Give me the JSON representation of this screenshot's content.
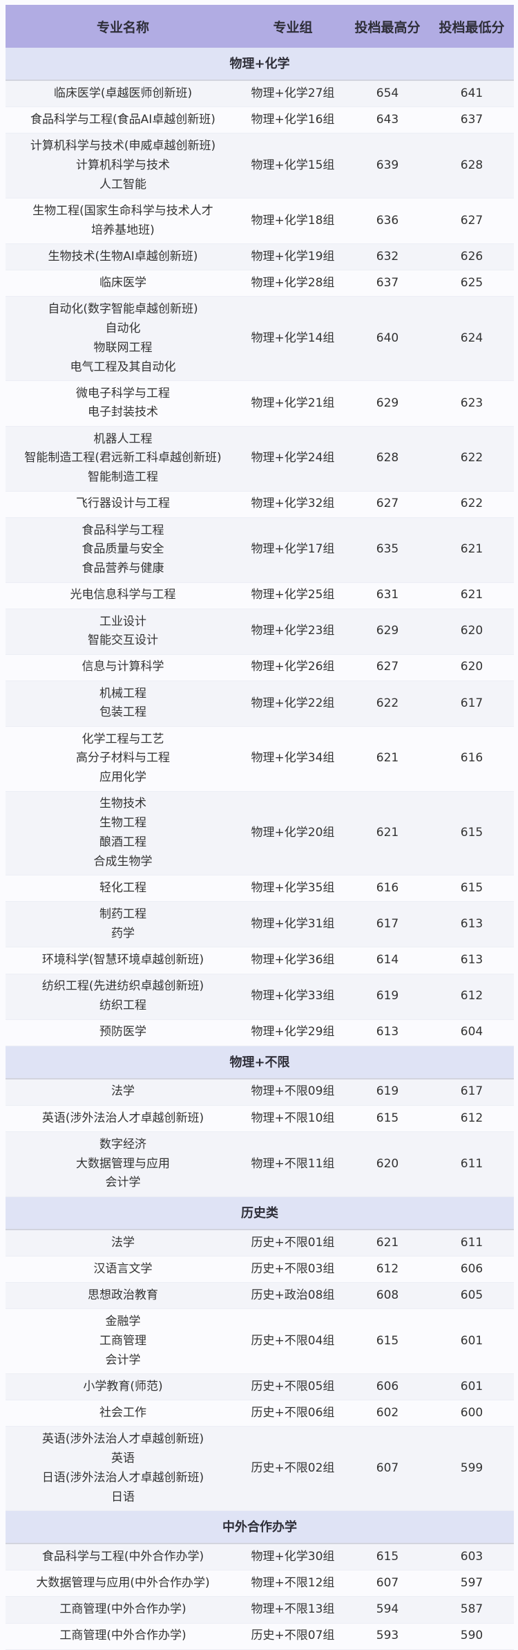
{
  "header": {
    "name": "专业名称",
    "group": "专业组",
    "max": "投档最高分",
    "min": "投档最低分"
  },
  "sections": [
    {
      "title": "物理+化学",
      "rows": [
        {
          "names": [
            "临床医学(卓越医师创新班)"
          ],
          "group": "物理+化学27组",
          "max": "654",
          "min": "641"
        },
        {
          "names": [
            "食品科学与工程(食品AI卓越创新班)"
          ],
          "group": "物理+化学16组",
          "max": "643",
          "min": "637"
        },
        {
          "names": [
            "计算机科学与技术(申威卓越创新班)",
            "计算机科学与技术",
            "人工智能"
          ],
          "group": "物理+化学15组",
          "max": "639",
          "min": "628"
        },
        {
          "names": [
            "生物工程(国家生命科学与技术人才",
            "培养基地班)"
          ],
          "group": "物理+化学18组",
          "max": "636",
          "min": "627"
        },
        {
          "names": [
            "生物技术(生物AI卓越创新班)"
          ],
          "group": "物理+化学19组",
          "max": "632",
          "min": "626"
        },
        {
          "names": [
            "临床医学"
          ],
          "group": "物理+化学28组",
          "max": "637",
          "min": "625"
        },
        {
          "names": [
            "自动化(数字智能卓越创新班)",
            "自动化",
            "物联网工程",
            "电气工程及其自动化"
          ],
          "group": "物理+化学14组",
          "max": "640",
          "min": "624"
        },
        {
          "names": [
            "微电子科学与工程",
            "电子封装技术"
          ],
          "group": "物理+化学21组",
          "max": "629",
          "min": "623"
        },
        {
          "names": [
            "机器人工程",
            "智能制造工程(君远新工科卓越创新班)",
            "智能制造工程"
          ],
          "group": "物理+化学24组",
          "max": "628",
          "min": "622"
        },
        {
          "names": [
            "飞行器设计与工程"
          ],
          "group": "物理+化学32组",
          "max": "627",
          "min": "622"
        },
        {
          "names": [
            "食品科学与工程",
            "食品质量与安全",
            "食品营养与健康"
          ],
          "group": "物理+化学17组",
          "max": "635",
          "min": "621"
        },
        {
          "names": [
            "光电信息科学与工程"
          ],
          "group": "物理+化学25组",
          "max": "631",
          "min": "621"
        },
        {
          "names": [
            "工业设计",
            "智能交互设计"
          ],
          "group": "物理+化学23组",
          "max": "629",
          "min": "620"
        },
        {
          "names": [
            "信息与计算科学"
          ],
          "group": "物理+化学26组",
          "max": "627",
          "min": "620"
        },
        {
          "names": [
            "机械工程",
            "包装工程"
          ],
          "group": "物理+化学22组",
          "max": "622",
          "min": "617"
        },
        {
          "names": [
            "化学工程与工艺",
            "高分子材料与工程",
            "应用化学"
          ],
          "group": "物理+化学34组",
          "max": "621",
          "min": "616"
        },
        {
          "names": [
            "生物技术",
            "生物工程",
            "酿酒工程",
            "合成生物学"
          ],
          "group": "物理+化学20组",
          "max": "621",
          "min": "615"
        },
        {
          "names": [
            "轻化工程"
          ],
          "group": "物理+化学35组",
          "max": "616",
          "min": "615"
        },
        {
          "names": [
            "制药工程",
            "药学"
          ],
          "group": "物理+化学31组",
          "max": "617",
          "min": "613"
        },
        {
          "names": [
            "环境科学(智慧环境卓越创新班)"
          ],
          "group": "物理+化学36组",
          "max": "614",
          "min": "613"
        },
        {
          "names": [
            "纺织工程(先进纺织卓越创新班)",
            "纺织工程"
          ],
          "group": "物理+化学33组",
          "max": "619",
          "min": "612"
        },
        {
          "names": [
            "预防医学"
          ],
          "group": "物理+化学29组",
          "max": "613",
          "min": "604"
        }
      ]
    },
    {
      "title": "物理+不限",
      "rows": [
        {
          "names": [
            "法学"
          ],
          "group": "物理+不限09组",
          "max": "619",
          "min": "617"
        },
        {
          "names": [
            "英语(涉外法治人才卓越创新班)"
          ],
          "group": "物理+不限10组",
          "max": "615",
          "min": "612"
        },
        {
          "names": [
            "数字经济",
            "大数据管理与应用",
            "会计学"
          ],
          "group": "物理+不限11组",
          "max": "620",
          "min": "611"
        }
      ]
    },
    {
      "title": "历史类",
      "rows": [
        {
          "names": [
            "法学"
          ],
          "group": "历史+不限01组",
          "max": "621",
          "min": "611"
        },
        {
          "names": [
            "汉语言文学"
          ],
          "group": "历史+不限03组",
          "max": "612",
          "min": "606"
        },
        {
          "names": [
            "思想政治教育"
          ],
          "group": "历史+政治08组",
          "max": "608",
          "min": "605"
        },
        {
          "names": [
            "金融学",
            "工商管理",
            "会计学"
          ],
          "group": "历史+不限04组",
          "max": "615",
          "min": "601"
        },
        {
          "names": [
            "小学教育(师范)"
          ],
          "group": "历史+不限05组",
          "max": "606",
          "min": "601"
        },
        {
          "names": [
            "社会工作"
          ],
          "group": "历史+不限06组",
          "max": "602",
          "min": "600"
        },
        {
          "names": [
            "英语(涉外法治人才卓越创新班)",
            "英语",
            "日语(涉外法治人才卓越创新班)",
            "日语"
          ],
          "group": "历史+不限02组",
          "max": "607",
          "min": "599"
        }
      ]
    },
    {
      "title": "中外合作办学",
      "rows": [
        {
          "names": [
            "食品科学与工程(中外合作办学)"
          ],
          "group": "物理+化学30组",
          "max": "615",
          "min": "603"
        },
        {
          "names": [
            "大数据管理与应用(中外合作办学)"
          ],
          "group": "物理+不限12组",
          "max": "607",
          "min": "597"
        },
        {
          "names": [
            "工商管理(中外合作办学)"
          ],
          "group": "物理+不限13组",
          "max": "594",
          "min": "587"
        },
        {
          "names": [
            "工商管理(中外合作办学)"
          ],
          "group": "历史+不限07组",
          "max": "593",
          "min": "590"
        }
      ]
    }
  ]
}
